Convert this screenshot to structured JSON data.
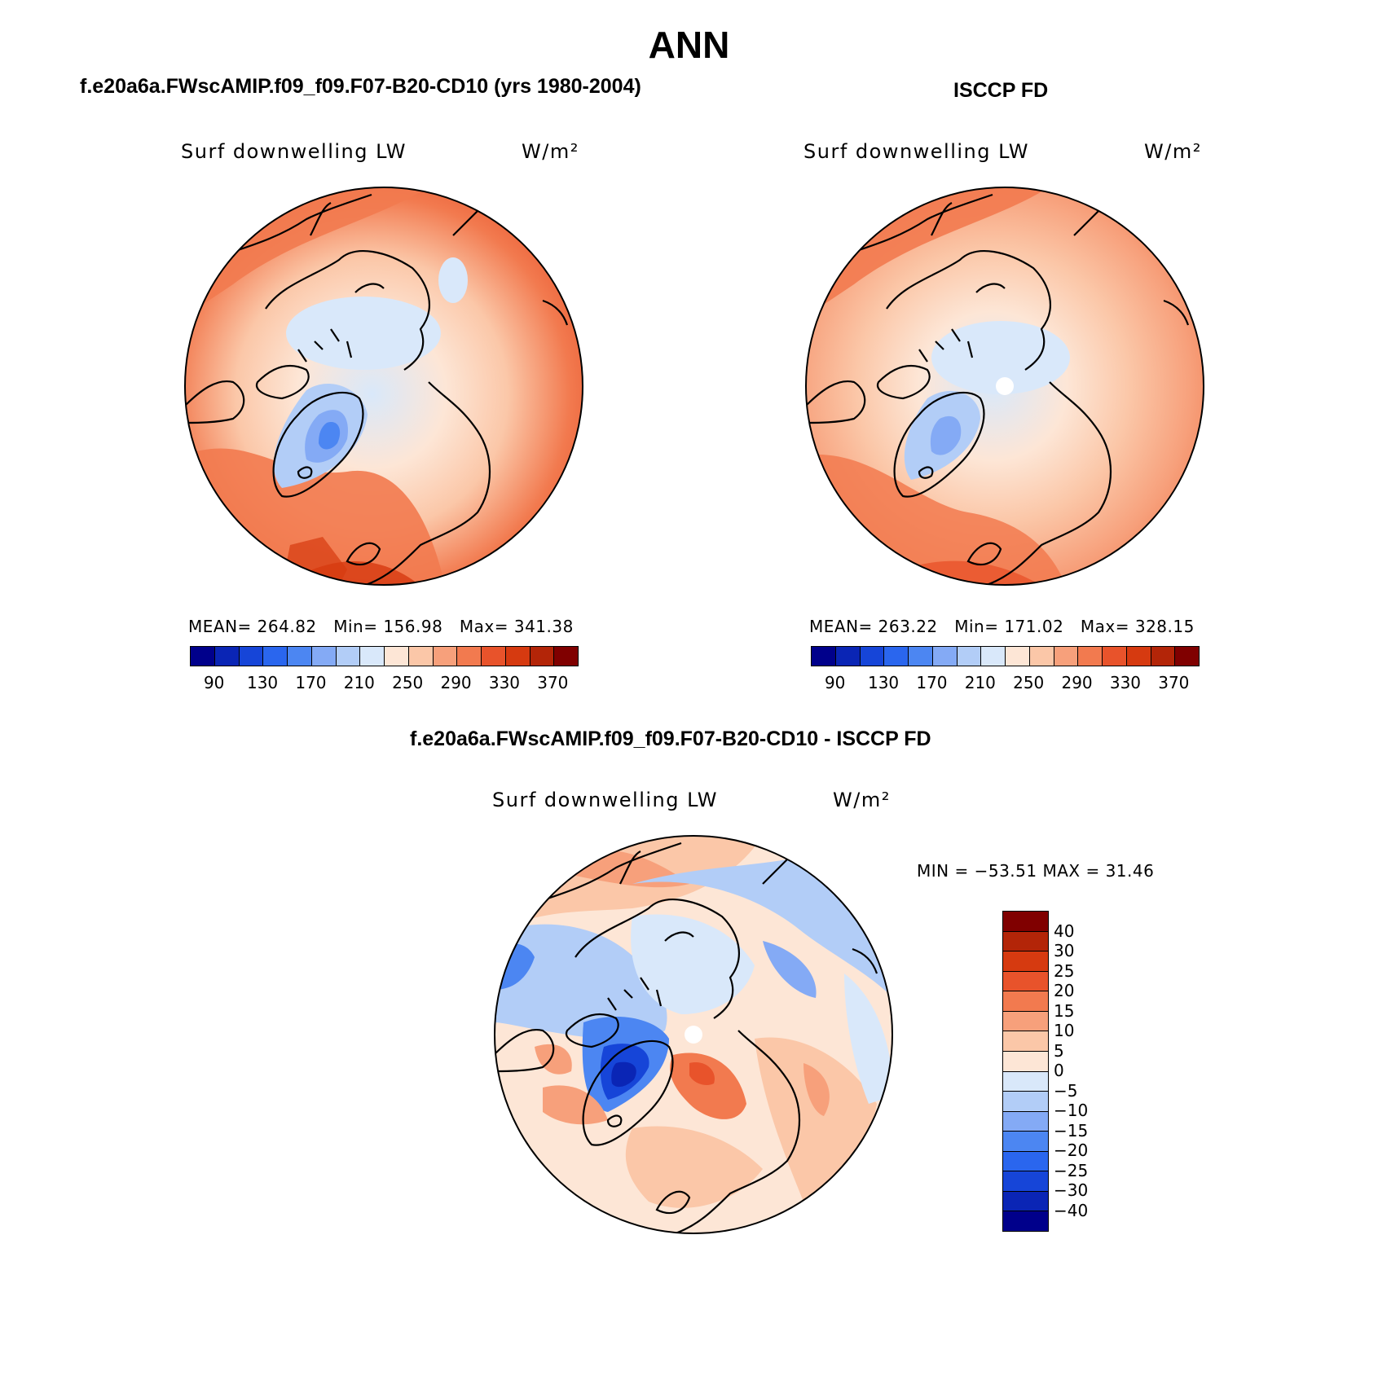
{
  "header": {
    "title": "ANN"
  },
  "panels": [
    {
      "title": "f.e20a6a.FWscAMIP.f09_f09.F07-B20-CD10 (yrs 1980-2004)",
      "variable": "Surf downwelling LW",
      "units": "W/m²",
      "stats": {
        "mean_label": "MEAN=",
        "mean": "264.82",
        "min_label": "Min=",
        "min": "156.98",
        "max_label": "Max=",
        "max": "341.38"
      },
      "colorbar_ticks": [
        "90",
        "130",
        "170",
        "210",
        "250",
        "290",
        "330",
        "370"
      ]
    },
    {
      "title": "ISCCP FD",
      "variable": "Surf downwelling LW",
      "units": "W/m²",
      "stats": {
        "mean_label": "MEAN=",
        "mean": "263.22",
        "min_label": "Min=",
        "min": "171.02",
        "max_label": "Max=",
        "max": "328.15"
      },
      "colorbar_ticks": [
        "90",
        "130",
        "170",
        "210",
        "250",
        "290",
        "330",
        "370"
      ]
    }
  ],
  "diff": {
    "title": "f.e20a6a.FWscAMIP.f09_f09.F07-B20-CD10 - ISCCP FD",
    "variable": "Surf downwelling LW",
    "units": "W/m²",
    "min_max_text": "MIN = −53.51 MAX =  31.46",
    "colorbar_ticks": [
      "40",
      "30",
      "25",
      "20",
      "15",
      "10",
      "5",
      "0",
      "−5",
      "−10",
      "−15",
      "−20",
      "−25",
      "−30",
      "−40"
    ]
  },
  "colors": {
    "abs_scale": [
      "#00008b",
      "#0a25b5",
      "#1645d8",
      "#2a66ee",
      "#4c86f2",
      "#84aaf5",
      "#b2cdf7",
      "#d9e8fa",
      "#fde6d6",
      "#fbc7a8",
      "#f7a07b",
      "#f27a4f",
      "#e8532b",
      "#d63a10",
      "#b32508",
      "#800000"
    ],
    "diff_scale": [
      "#800000",
      "#b32508",
      "#d63a10",
      "#e8532b",
      "#f27a4f",
      "#f7a07b",
      "#fbc7a8",
      "#fde6d6",
      "#d9e8fa",
      "#b2cdf7",
      "#84aaf5",
      "#4c86f2",
      "#2a66ee",
      "#1645d8",
      "#0a25b5",
      "#00008b"
    ]
  }
}
